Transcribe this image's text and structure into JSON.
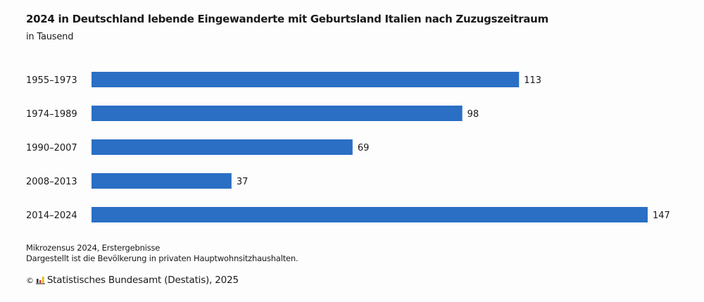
{
  "chart_data": {
    "type": "bar",
    "orientation": "horizontal",
    "title": "2024 in Deutschland lebende Eingewanderte mit Geburtsland Italien nach Zuzugszeitraum",
    "subtitle": "in Tausend",
    "categories": [
      "1955–1973",
      "1974–1989",
      "1990–2007",
      "2008–2013",
      "2014–2024"
    ],
    "values": [
      113,
      98,
      69,
      37,
      147
    ],
    "value_labels": [
      "113",
      "98",
      "69",
      "37",
      "147"
    ],
    "xlabel": "",
    "ylabel": "",
    "xlim": [
      0,
      147
    ],
    "grid": false,
    "legend": "none",
    "bar_color": "#2a6fc4"
  },
  "footer": {
    "source_line1": "Mikrozensus 2024, Erstergebnisse",
    "source_line2": "Dargestellt ist die Bevölkerung in privaten Hauptwohnsitzhaushalten.",
    "copyright_symbol": "©",
    "copyright_text": "Statistisches Bundesamt (Destatis), 2025",
    "logo_icon": "destatis-bar-logo-icon"
  }
}
